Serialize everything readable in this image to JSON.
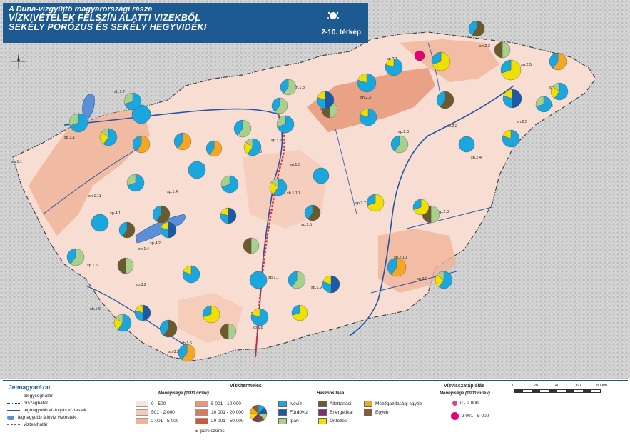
{
  "title": {
    "line1": "A Duna-vízgyűjtő magyarországi része",
    "line2": "VÍZKIVÉTELEK FELSZÍN ALATTI VIZEKBŐL",
    "line3": "SEKÉLY PORÓZUS ÉS SEKÉLY HEGYVIDÉKI",
    "map_number": "2-10. térkép"
  },
  "colors": {
    "background": "#ffffff",
    "relief": "#cfcfcf",
    "country": "#f7ddd2",
    "mid": "#f0b49a",
    "high": "#e8987a",
    "river": "#2255a8",
    "border": "#444444",
    "bank": "#e53030",
    "title_bg": "#1e5a92",
    "lake": "#5b8fd6",
    "ivoviz": "#1aa6de",
    "furdoviz": "#1c5aa8",
    "ipari": "#a8d08d",
    "allattartas": "#6b5a2e",
    "energetikai": "#8b2a7a",
    "ontozes": "#f0e000",
    "mezogazdasagi": "#f5a623",
    "egyeb": "#8a5a2a",
    "vizvissza_small": "#e83c8c",
    "vizvissza_big": "#e8007a"
  },
  "map": {
    "labels": [
      {
        "text": "sh.2.1"
      },
      {
        "text": "sh.2.2"
      },
      {
        "text": "sh.2.3"
      },
      {
        "text": "sh.2.4"
      },
      {
        "text": "sh.2.5"
      },
      {
        "text": "sh.1.1"
      },
      {
        "text": "sh.1.2"
      },
      {
        "text": "sh.1.3"
      },
      {
        "text": "sh.1.4"
      },
      {
        "text": "sh.1.5"
      },
      {
        "text": "sh.1.6"
      },
      {
        "text": "sh.1.7"
      },
      {
        "text": "sh.1.8"
      },
      {
        "text": "sh.1.9"
      },
      {
        "text": "sh.1.10"
      },
      {
        "text": "sh.1.11"
      },
      {
        "text": "sp.1.1"
      },
      {
        "text": "sp.1.2"
      },
      {
        "text": "sp.1.3"
      },
      {
        "text": "sp.1.4"
      },
      {
        "text": "sp.1.5"
      },
      {
        "text": "sp.1.6"
      },
      {
        "text": "sp.1.7"
      },
      {
        "text": "sp.1.8"
      },
      {
        "text": "sp.1.9"
      },
      {
        "text": "sp.2.1"
      },
      {
        "text": "sp.2.2"
      },
      {
        "text": "sp.2.3"
      },
      {
        "text": "sp.2.4"
      },
      {
        "text": "sp.2.5"
      },
      {
        "text": "sp.2.6"
      },
      {
        "text": "sp.2.7"
      },
      {
        "text": "sp.2.8"
      },
      {
        "text": "sp.2.9"
      },
      {
        "text": "sp.2.10"
      },
      {
        "text": "sp.3.1"
      },
      {
        "text": "sp.3.2"
      },
      {
        "text": "sp.3.3"
      },
      {
        "text": "sp.4.1"
      },
      {
        "text": "sp.4.2"
      }
    ],
    "pies": [
      {
        "s": [
          {
            "c": "ivoviz",
            "v": 0.7
          },
          {
            "c": "ipari",
            "v": 0.3
          }
        ]
      },
      {
        "s": [
          {
            "c": "ivoviz",
            "v": 1.0
          }
        ]
      },
      {
        "s": [
          {
            "c": "ipari",
            "v": 0.6
          },
          {
            "c": "ivoviz",
            "v": 0.4
          }
        ]
      },
      {
        "s": [
          {
            "c": "ivoviz",
            "v": 0.8
          },
          {
            "c": "ontozes",
            "v": 0.2
          }
        ]
      },
      {
        "s": [
          {
            "c": "ontozes",
            "v": 0.7
          },
          {
            "c": "ivoviz",
            "v": 0.3
          }
        ]
      },
      {
        "s": [
          {
            "c": "allattartas",
            "v": 0.6
          },
          {
            "c": "ivoviz",
            "v": 0.4
          }
        ]
      },
      {
        "s": [
          {
            "c": "ipari",
            "v": 0.5
          },
          {
            "c": "allattartas",
            "v": 0.5
          }
        ]
      },
      {
        "s": [
          {
            "c": "mezogazdasagi",
            "v": 0.6
          },
          {
            "c": "ivoviz",
            "v": 0.4
          }
        ]
      },
      {
        "s": [
          {
            "c": "ivoviz",
            "v": 0.6
          },
          {
            "c": "ontozes",
            "v": 0.25
          },
          {
            "c": "ipari",
            "v": 0.15
          }
        ]
      },
      {
        "s": [
          {
            "c": "furdoviz",
            "v": 0.5
          },
          {
            "c": "ivoviz",
            "v": 0.3
          },
          {
            "c": "ontozes",
            "v": 0.2
          }
        ]
      }
    ],
    "vizvissza_points": [
      {
        "class": "big"
      }
    ]
  },
  "legend": {
    "title": "Jelmagyarázat",
    "lines": [
      {
        "label": "alegységhatár",
        "style": "dashdot"
      },
      {
        "label": "országhatár",
        "style": "dashdot2"
      },
      {
        "label": "legnagyobb vízfolyás víztestek",
        "style": "river"
      },
      {
        "label": "legnagyobb állóvíz víztestek",
        "style": "lake"
      },
      {
        "label": "víztesthatár",
        "style": "dash"
      }
    ],
    "vizkitermeles_title": "Vízkitermelés",
    "mennyiseg_label": "Mennyisége (1000 m³/év)",
    "classes": [
      {
        "label": "0 - 500",
        "color": "#f7e6de"
      },
      {
        "label": "501 - 2 000",
        "color": "#f5cbb8"
      },
      {
        "label": "2 001 - 5 000",
        "color": "#f0b49a"
      },
      {
        "label": "5 001 - 10 000",
        "color": "#e8987a"
      },
      {
        "label": "10 001 - 20 000",
        "color": "#de7a58"
      },
      {
        "label": "20 001 - 50 000",
        "color": "#cf5a38"
      }
    ],
    "parti_label": "parti szűrés",
    "hasznositas_title": "Hasznosítása",
    "uses": [
      {
        "label": "Ivóvíz",
        "key": "ivoviz"
      },
      {
        "label": "Fürdővíz",
        "key": "furdoviz"
      },
      {
        "label": "Ipari",
        "key": "ipari"
      },
      {
        "label": "Állattartási",
        "key": "allattartas"
      },
      {
        "label": "Energetikai",
        "key": "energetikai"
      },
      {
        "label": "Öntözés",
        "key": "ontozes"
      },
      {
        "label": "Mezőgazdasági egyéb",
        "key": "mezogazdasagi"
      },
      {
        "label": "Egyéb",
        "key": "egyeb"
      }
    ],
    "vizvissza_title": "Vízvisszatáplálás",
    "vizvissza_mennyiseg": "Mennyisége (1000 m³/év)",
    "vizvissza_classes": [
      {
        "label": "0 - 2 000"
      },
      {
        "label": "2 001 - 5 000"
      }
    ],
    "scale": {
      "ticks": [
        "0",
        "20",
        "40",
        "60",
        "80 km"
      ]
    }
  }
}
